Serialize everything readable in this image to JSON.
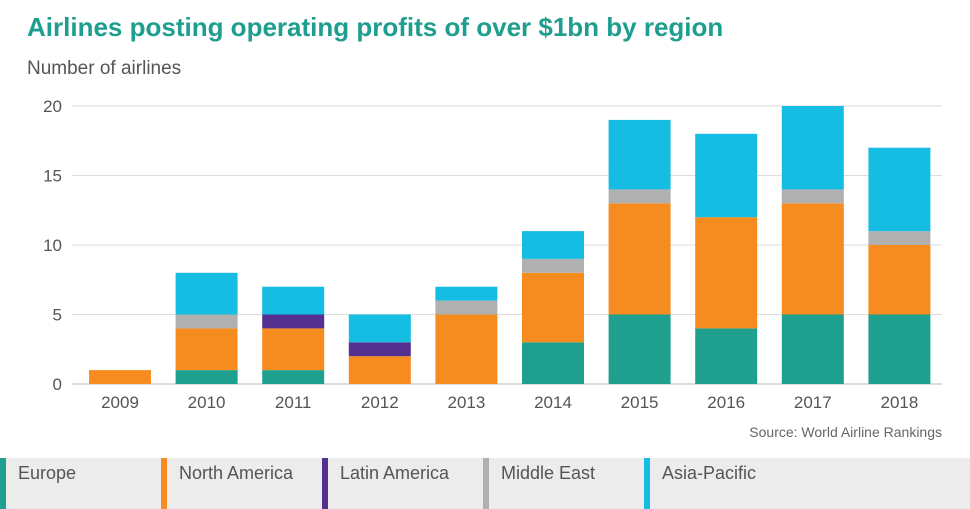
{
  "chart_data": {
    "type": "bar",
    "stacked": true,
    "title": "Airlines posting operating profits of over $1bn by region",
    "ylabel": "Number of airlines",
    "xlabel": "",
    "source": "Source: World Airline Rankings",
    "ylim": [
      0,
      20
    ],
    "yticks": [
      0,
      5,
      10,
      15,
      20
    ],
    "grid": true,
    "legend_position": "bottom",
    "categories": [
      "2009",
      "2010",
      "2011",
      "2012",
      "2013",
      "2014",
      "2015",
      "2016",
      "2017",
      "2018"
    ],
    "series": [
      {
        "name": "Europe",
        "color": "#1fa08f",
        "values": [
          0,
          1,
          1,
          0,
          0,
          3,
          5,
          4,
          5,
          5
        ]
      },
      {
        "name": "North America",
        "color": "#f68b1f",
        "values": [
          1,
          3,
          3,
          2,
          5,
          5,
          8,
          8,
          8,
          5
        ]
      },
      {
        "name": "Latin America",
        "color": "#543090",
        "values": [
          0,
          0,
          1,
          1,
          0,
          0,
          0,
          0,
          0,
          0
        ]
      },
      {
        "name": "Middle East",
        "color": "#b0b0b0",
        "values": [
          0,
          1,
          0,
          0,
          1,
          1,
          1,
          0,
          1,
          1
        ]
      },
      {
        "name": "Asia-Pacific",
        "color": "#16bde3",
        "values": [
          0,
          3,
          2,
          2,
          1,
          2,
          5,
          6,
          6,
          6
        ]
      }
    ]
  }
}
